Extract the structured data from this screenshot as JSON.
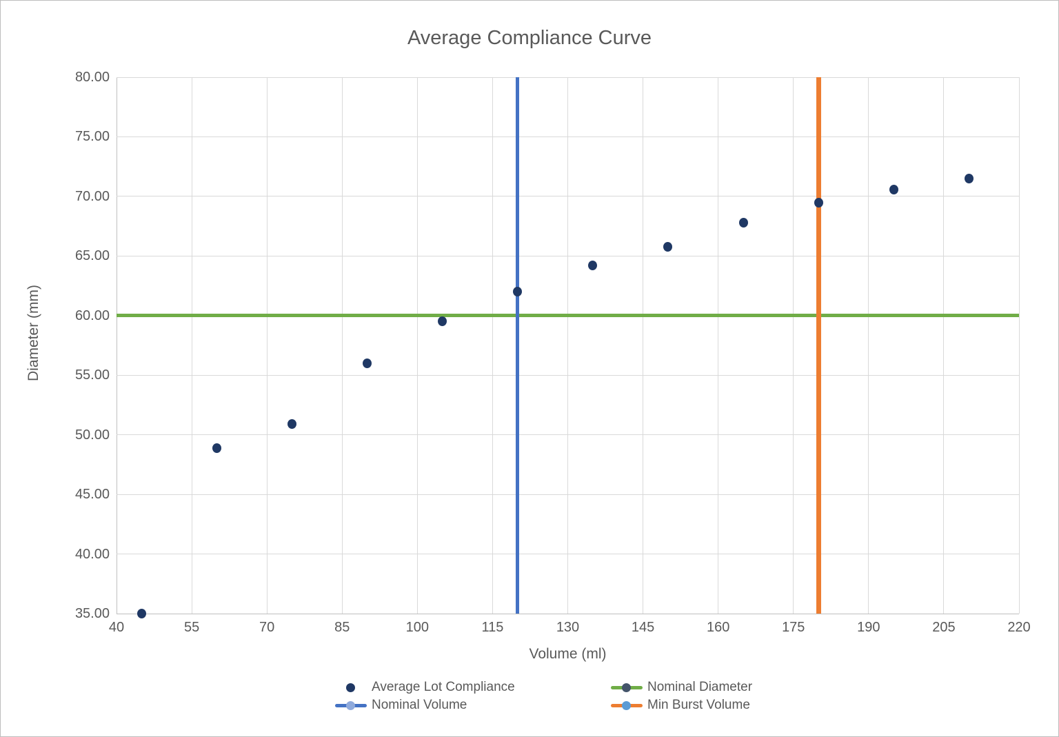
{
  "window": {
    "background": "#FFFFFF",
    "frame_border_color": "#BDBDBD",
    "text_color": "#595959",
    "grid_color": "#D9D9D9",
    "axis_line_color": "#BFBFBF"
  },
  "chart_data": {
    "type": "scatter",
    "title": "Average Compliance Curve",
    "xlabel": "Volume (ml)",
    "ylabel": "Diameter (mm)",
    "xlim": [
      40,
      220
    ],
    "ylim": [
      35,
      80
    ],
    "grid": true,
    "x_ticks": [
      40,
      55,
      70,
      85,
      100,
      115,
      130,
      145,
      160,
      175,
      190,
      205,
      220
    ],
    "y_tick_labels": [
      "35.00",
      "40.00",
      "45.00",
      "50.00",
      "55.00",
      "60.00",
      "65.00",
      "70.00",
      "75.00",
      "80.00"
    ],
    "series": [
      {
        "name": "Average Lot Compliance",
        "type": "scatter",
        "color": "#1F3864",
        "points": [
          [
            45,
            35.0
          ],
          [
            60,
            48.9
          ],
          [
            75,
            50.9
          ],
          [
            90,
            56.0
          ],
          [
            105,
            59.5
          ],
          [
            120,
            62.0
          ],
          [
            135,
            64.2
          ],
          [
            150,
            65.8
          ],
          [
            165,
            67.8
          ],
          [
            180,
            69.5
          ],
          [
            195,
            70.6
          ],
          [
            210,
            71.5
          ]
        ]
      },
      {
        "name": "Nominal Diameter",
        "type": "hline",
        "y": 60,
        "color": "#70AD47",
        "line_width": 5
      },
      {
        "name": "Nominal Volume",
        "type": "vline",
        "x": 120,
        "color": "#4472C4",
        "line_width": 5
      },
      {
        "name": "Min Burst Volume",
        "type": "vline",
        "x": 180,
        "color": "#ED7D31",
        "line_width": 7
      }
    ],
    "legend": {
      "position": "bottom",
      "entries": [
        {
          "label": "Average Lot Compliance",
          "marker": "dot",
          "dot_color": "#1F3864",
          "line_color": null
        },
        {
          "label": "Nominal Diameter",
          "marker": "line-dot",
          "dot_color": "#44546A",
          "line_color": "#70AD47"
        },
        {
          "label": "Nominal Volume",
          "marker": "line-dot",
          "dot_color": "#8FAADC",
          "line_color": "#4472C4"
        },
        {
          "label": "Min Burst Volume",
          "marker": "line-dot",
          "dot_color": "#5B9BD5",
          "line_color": "#ED7D31"
        }
      ]
    }
  }
}
